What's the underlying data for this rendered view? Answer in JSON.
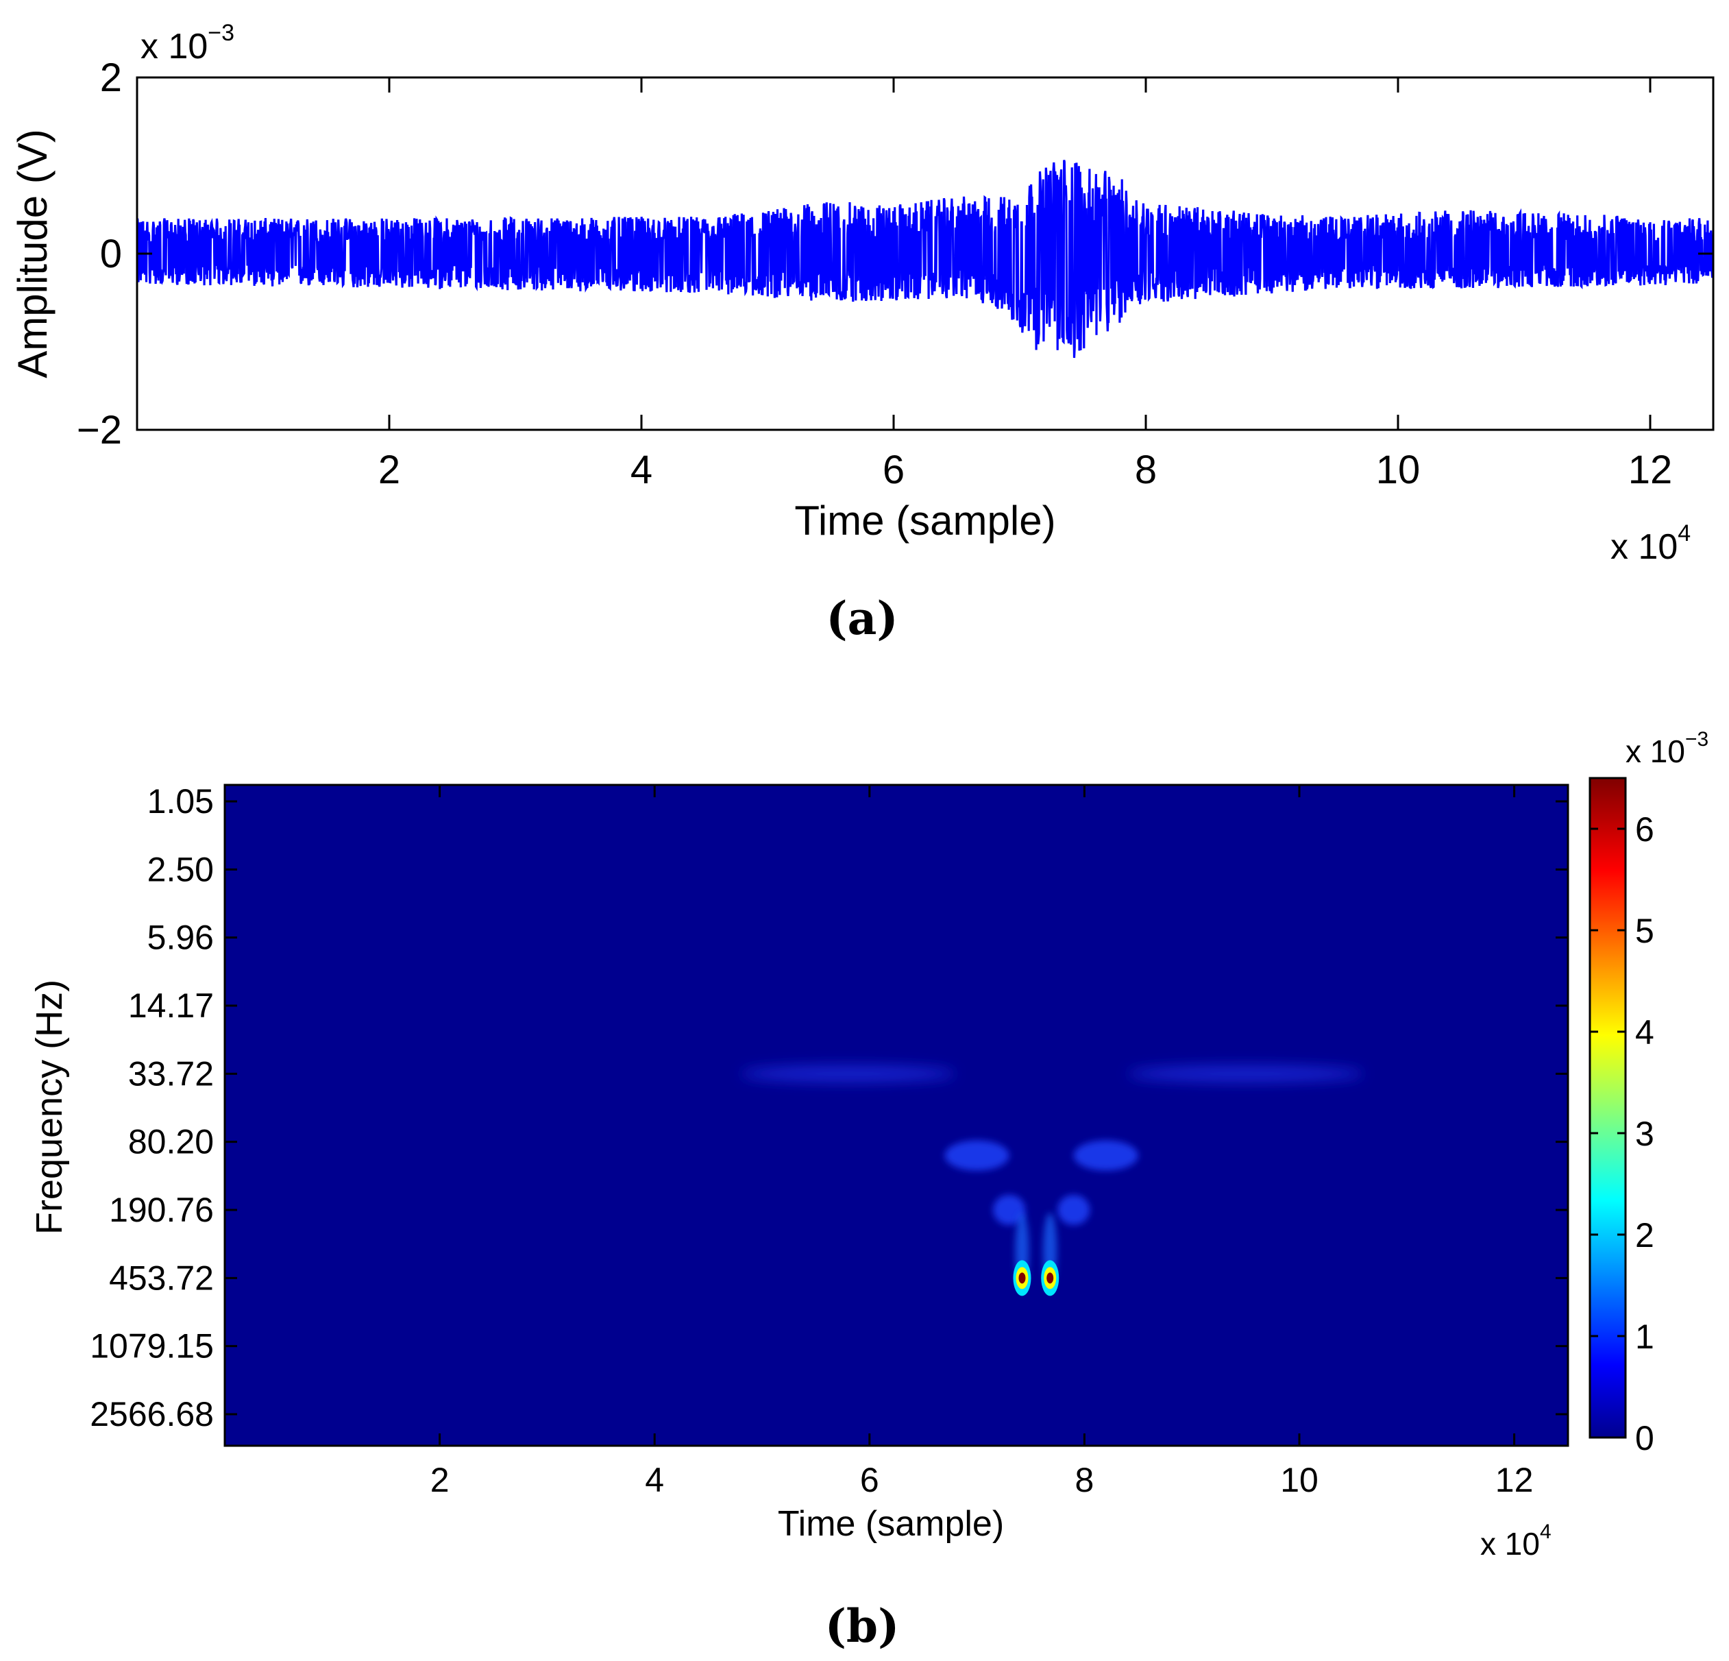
{
  "chart_data": [
    {
      "panel": "a",
      "type": "line",
      "caption": "(a)",
      "xlabel": "Time (sample)",
      "ylabel": "Amplitude (V)",
      "x_multiplier": "x 10",
      "x_multiplier_exp": "4",
      "y_multiplier": "x 10",
      "y_multiplier_exp": "−3",
      "xlim": [
        0,
        12.5
      ],
      "ylim": [
        -2,
        2
      ],
      "x_ticks": [
        2,
        4,
        6,
        8,
        10,
        12
      ],
      "x_tick_labels": [
        "2",
        "4",
        "6",
        "8",
        "10",
        "12"
      ],
      "y_ticks": [
        -2,
        0,
        2
      ],
      "y_tick_labels": [
        "−2",
        "0",
        "2"
      ],
      "series_color": "#0000ff",
      "envelope": {
        "x": [
          0,
          4.5,
          5.0,
          5.5,
          6.0,
          6.5,
          6.8,
          7.0,
          7.2,
          7.3,
          7.45,
          7.6,
          7.7,
          7.85,
          8.0,
          8.3,
          8.6,
          9.0,
          9.5,
          10.5,
          12.5
        ],
        "max": [
          0.4,
          0.42,
          0.5,
          0.6,
          0.55,
          0.65,
          0.65,
          0.7,
          1.0,
          1.1,
          1.1,
          0.9,
          1.0,
          0.8,
          0.6,
          0.55,
          0.5,
          0.45,
          0.42,
          0.5,
          0.4
        ],
        "min": [
          -0.35,
          -0.45,
          -0.5,
          -0.55,
          -0.55,
          -0.5,
          -0.6,
          -0.9,
          -1.2,
          -1.25,
          -1.2,
          -0.95,
          -0.95,
          -0.7,
          -0.55,
          -0.55,
          -0.5,
          -0.45,
          -0.4,
          -0.4,
          -0.35
        ]
      }
    },
    {
      "panel": "b",
      "type": "heatmap",
      "caption": "(b)",
      "xlabel": "Time (sample)",
      "ylabel": "Frequency (Hz)",
      "x_multiplier": "x 10",
      "x_multiplier_exp": "4",
      "xlim": [
        0,
        12.5
      ],
      "x_ticks": [
        2,
        4,
        6,
        8,
        10,
        12
      ],
      "x_tick_labels": [
        "2",
        "4",
        "6",
        "8",
        "10",
        "12"
      ],
      "y_tick_labels": [
        "1.05",
        "2.50",
        "5.96",
        "14.17",
        "33.72",
        "80.20",
        "190.76",
        "453.72",
        "1079.15",
        "2566.68"
      ],
      "colorbar": {
        "multiplier": "x 10",
        "multiplier_exp": "−3",
        "range": [
          0,
          6.5
        ],
        "ticks": [
          0,
          1,
          2,
          3,
          4,
          5,
          6
        ],
        "tick_labels": [
          "0",
          "1",
          "2",
          "3",
          "4",
          "5",
          "6"
        ],
        "colormap": "jet"
      },
      "features": [
        {
          "t": 5.8,
          "freq_index": 4.0,
          "value": 0.6,
          "shape": "streak",
          "t_spread": 1.0
        },
        {
          "t": 9.5,
          "freq_index": 4.0,
          "value": 0.5,
          "shape": "streak",
          "t_spread": 1.1
        },
        {
          "t": 7.0,
          "freq_index": 5.2,
          "value": 0.8,
          "shape": "blob",
          "t_spread": 0.3
        },
        {
          "t": 8.2,
          "freq_index": 5.2,
          "value": 0.9,
          "shape": "blob",
          "t_spread": 0.3
        },
        {
          "t": 7.3,
          "freq_index": 6.0,
          "value": 1.0,
          "shape": "blob",
          "t_spread": 0.15
        },
        {
          "t": 7.9,
          "freq_index": 6.0,
          "value": 1.0,
          "shape": "blob",
          "t_spread": 0.15
        },
        {
          "t": 7.42,
          "freq_index": 7.0,
          "value": 6.5,
          "shape": "peak",
          "t_spread": 0.08
        },
        {
          "t": 7.68,
          "freq_index": 7.0,
          "value": 6.5,
          "shape": "peak",
          "t_spread": 0.08
        }
      ]
    }
  ]
}
